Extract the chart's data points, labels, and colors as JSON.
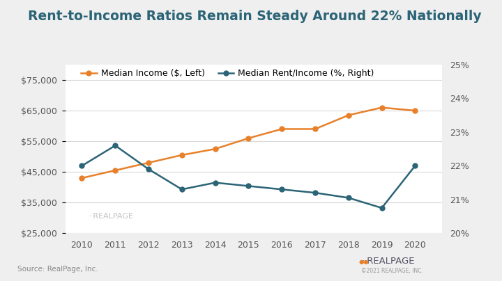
{
  "title": "Rent-to-Income Ratios Remain Steady Around 22% Nationally",
  "years": [
    2010,
    2011,
    2012,
    2013,
    2014,
    2015,
    2016,
    2017,
    2018,
    2019,
    2020
  ],
  "median_income": [
    43000,
    45500,
    48000,
    50500,
    52500,
    56000,
    59000,
    59000,
    63500,
    66000,
    65000
  ],
  "rent_income_pct": [
    22.0,
    22.6,
    21.9,
    21.3,
    21.5,
    21.4,
    21.3,
    21.2,
    21.05,
    20.75,
    22.0
  ],
  "income_color": "#E8802A",
  "rent_color": "#2B6476",
  "left_ylim": [
    25000,
    80000
  ],
  "right_ylim": [
    20.0,
    25.0
  ],
  "left_yticks": [
    25000,
    35000,
    45000,
    55000,
    65000,
    75000
  ],
  "right_yticks": [
    20,
    21,
    22,
    23,
    24,
    25
  ],
  "bg_color": "#EFEFEF",
  "plot_bg_color": "#FFFFFF",
  "grid_color": "#D8D8D8",
  "legend_income": "Median Income ($, Left)",
  "legend_rent": "Median Rent/Income (%, Right)",
  "source_text": "Source: RealPage, Inc.",
  "title_color": "#2B6476",
  "tick_color": "#555555",
  "title_fontsize": 13.5,
  "label_fontsize": 9,
  "tick_fontsize": 9,
  "accent_color": "#2B6476"
}
